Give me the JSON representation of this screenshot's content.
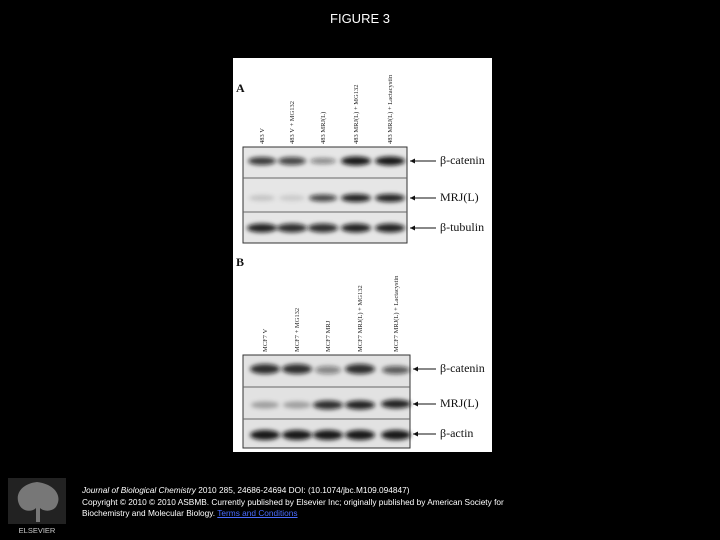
{
  "header": {
    "title": "FIGURE 3"
  },
  "figure": {
    "panels": [
      {
        "label": "A",
        "lanes": [
          "483 V",
          "483 V + MG132",
          "483 MRJ(L)",
          "483 MRJ(L) + MG132",
          "483 MRJ(L) + Lactacystin"
        ],
        "bands": [
          "β-catenin",
          "MRJ(L)",
          "β-tubulin"
        ]
      },
      {
        "label": "B",
        "lanes": [
          "MCF7 V",
          "MCF7 + MG132",
          "MCF7 MRJ",
          "MCF7 MRJ(L) + MG132",
          "MCF7 MRJ(L) + Lactacystin"
        ],
        "bands": [
          "β-catenin",
          "MRJ(L)",
          "β-actin"
        ]
      }
    ]
  },
  "footer": {
    "logo": "ELSEVIER",
    "journal": "Journal of Biological Chemistry",
    "citation": "2010 285, 24686-24694 DOI: (10.1074/jbc.M109.094847)",
    "copyright": "Copyright © 2010 © 2010 ASBMB. Currently published by Elsevier Inc; originally published by American Society for Biochemistry and Molecular Biology.",
    "link": "Terms and Conditions"
  }
}
